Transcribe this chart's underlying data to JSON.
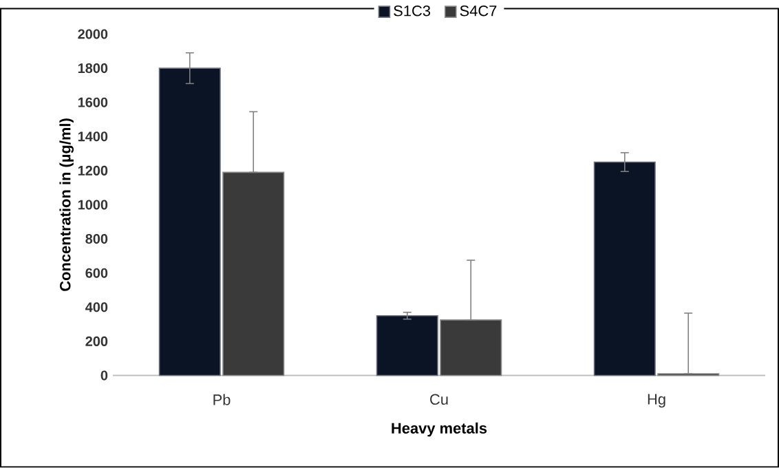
{
  "chart_data": {
    "type": "bar",
    "xlabel": "Heavy metals",
    "ylabel": "Concentration in (µg/ml)",
    "categories": [
      "Pb",
      "Cu",
      "Hg"
    ],
    "series": [
      {
        "name": "S1C3",
        "color": "#0b1424",
        "values": [
          1800,
          350,
          1250
        ],
        "errors": [
          90,
          20,
          55
        ]
      },
      {
        "name": "S4C7",
        "color": "#3a3a3a",
        "values": [
          1190,
          325,
          10
        ],
        "errors": [
          [
            1190,
            1545
          ],
          [
            325,
            675
          ],
          [
            10,
            365
          ]
        ]
      }
    ],
    "ylim": [
      0,
      2000
    ],
    "yticks": [
      0,
      200,
      400,
      600,
      800,
      1000,
      1200,
      1400,
      1600,
      1800,
      2000
    ],
    "legend": "top",
    "grid": false
  }
}
